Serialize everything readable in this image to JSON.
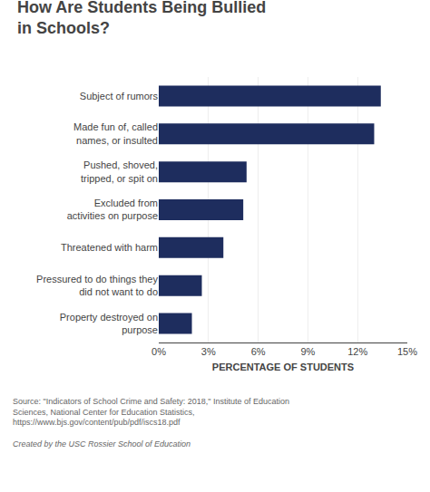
{
  "chart_data": {
    "type": "bar",
    "orientation": "horizontal",
    "title": "How Are Students Being Bullied\nin Schools?",
    "categories": [
      "Property destroyed on\npurpose",
      "Pressured to do things they\ndid not want to do",
      "Threatened with harm",
      "Excluded from\nactivities on purpose",
      "Pushed, shoved,\ntripped, or spit on",
      "Made fun of, called\nnames, or insulted",
      "Subject of rumors"
    ],
    "values": [
      2.0,
      2.6,
      3.9,
      5.1,
      5.3,
      13.0,
      13.4
    ],
    "color": "#1e2d5e",
    "xlabel": "PERCENTAGE OF STUDENTS",
    "xlim": [
      0,
      15
    ],
    "xticks": [
      {
        "value": 0,
        "label": "0%"
      },
      {
        "value": 3,
        "label": "3%"
      },
      {
        "value": 6,
        "label": "6%"
      },
      {
        "value": 9,
        "label": "9%"
      },
      {
        "value": 12,
        "label": "12%"
      },
      {
        "value": 15,
        "label": "15%"
      }
    ],
    "grid": true,
    "annotations": [
      "Source: \"Indicators of School Crime and Safety: 2018,\" Institute of Education Sciences, National Center for Education Statistics,\nhttps://www.bjs.gov/content/pub/pdf/iscs18.pdf",
      "Created by the USC Rossier School of Education"
    ]
  }
}
